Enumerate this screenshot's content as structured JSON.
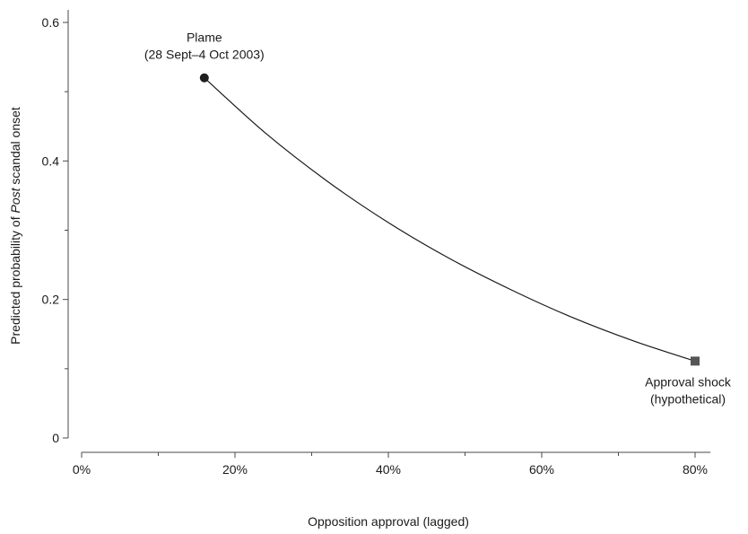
{
  "chart_data": {
    "type": "line",
    "xlabel": "Opposition approval (lagged)",
    "ylabel_prefix": "Predicted probability of ",
    "ylabel_emphasis": "Post",
    "ylabel_suffix": " scandal onset",
    "xlim": [
      0,
      0.82
    ],
    "ylim": [
      0,
      0.6
    ],
    "x_ticks": [
      {
        "value": 0,
        "label": "0%"
      },
      {
        "value": 0.2,
        "label": "20%"
      },
      {
        "value": 0.4,
        "label": "40%"
      },
      {
        "value": 0.6,
        "label": "60%"
      },
      {
        "value": 0.8,
        "label": "80%"
      }
    ],
    "x_minor_ticks": [
      0.1,
      0.3,
      0.5,
      0.7
    ],
    "y_ticks": [
      {
        "value": 0,
        "label": "0"
      },
      {
        "value": 0.2,
        "label": "0.2"
      },
      {
        "value": 0.4,
        "label": "0.4"
      },
      {
        "value": 0.6,
        "label": "0.6"
      }
    ],
    "y_minor_ticks": [
      0.1,
      0.3,
      0.5
    ],
    "series": [
      {
        "x": [
          0.16,
          0.24,
          0.32,
          0.4,
          0.48,
          0.56,
          0.64,
          0.72,
          0.8
        ],
        "y": [
          0.52,
          0.44,
          0.371,
          0.311,
          0.259,
          0.214,
          0.174,
          0.14,
          0.111
        ]
      }
    ],
    "points": [
      {
        "x": 0.16,
        "y": 0.52,
        "marker": "circle",
        "color": "#1f1f1f"
      },
      {
        "x": 0.8,
        "y": 0.111,
        "marker": "square",
        "color": "#555555"
      }
    ],
    "annotations": [
      {
        "lines": [
          "Plame",
          "(28 Sept–4 Oct 2003)"
        ]
      },
      {
        "lines": [
          "Approval shock",
          "(hypothetical)"
        ]
      }
    ],
    "grid": false
  }
}
